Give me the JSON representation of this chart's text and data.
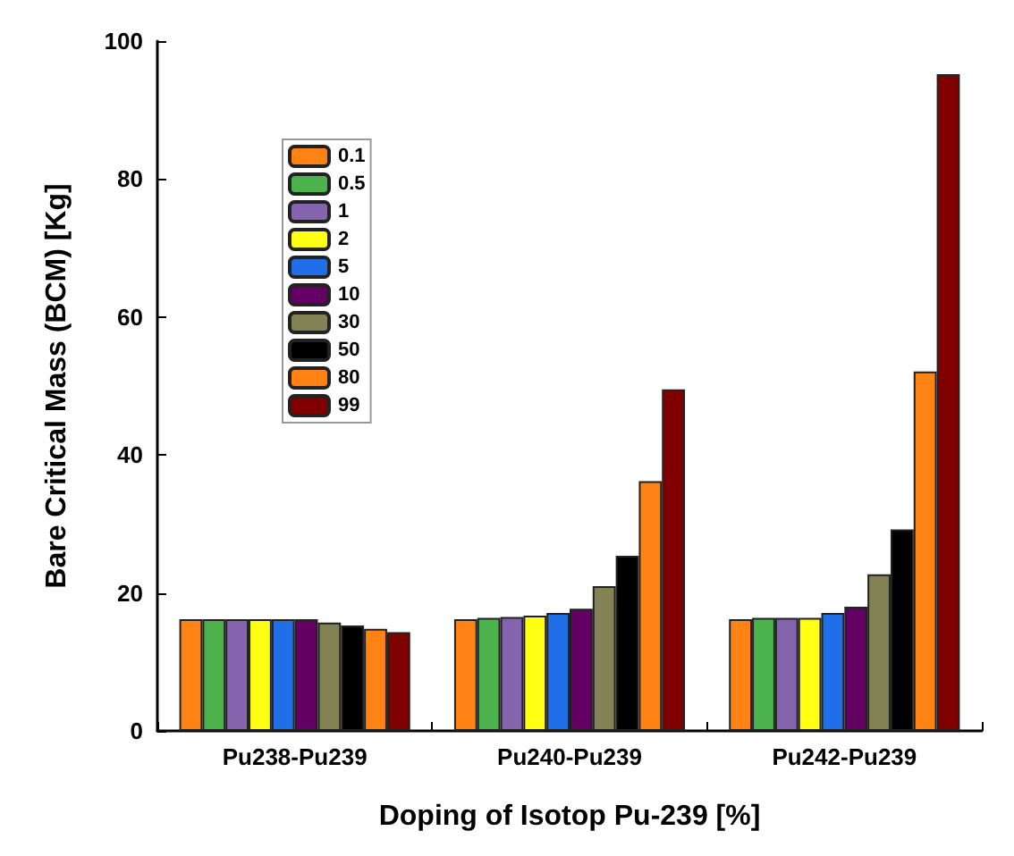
{
  "chart_data": {
    "type": "bar",
    "xlabel": "Doping of Isotop Pu-239 [%]",
    "ylabel": "Bare Critical Mass (BCM) [Kg]",
    "categories": [
      "Pu238-Pu239",
      "Pu240-Pu239",
      "Pu242-Pu239"
    ],
    "series": [
      {
        "name": "0.1",
        "color": "#ff8214",
        "values": [
          16.2,
          16.2,
          16.2
        ]
      },
      {
        "name": "0.5",
        "color": "#4cb24c",
        "values": [
          16.2,
          16.4,
          16.4
        ]
      },
      {
        "name": "1",
        "color": "#8464ac",
        "values": [
          16.2,
          16.5,
          16.4
        ]
      },
      {
        "name": "2",
        "color": "#ffff14",
        "values": [
          16.2,
          16.7,
          16.4
        ]
      },
      {
        "name": "5",
        "color": "#206ee8",
        "values": [
          16.2,
          17.1,
          17.1
        ]
      },
      {
        "name": "10",
        "color": "#640064",
        "values": [
          16.2,
          17.7,
          18.0
        ]
      },
      {
        "name": "30",
        "color": "#828254",
        "values": [
          15.7,
          21.0,
          22.7
        ]
      },
      {
        "name": "50",
        "color": "#000000",
        "values": [
          15.3,
          25.4,
          29.2
        ]
      },
      {
        "name": "80",
        "color": "#ff8214",
        "values": [
          14.8,
          36.2,
          52.1
        ]
      },
      {
        "name": "99",
        "color": "#800000",
        "values": [
          14.3,
          49.5,
          95.2
        ]
      }
    ],
    "ylim": [
      0,
      100
    ],
    "yticks": [
      0,
      20,
      40,
      60,
      80,
      100
    ],
    "grid": false,
    "legend": "top left"
  }
}
